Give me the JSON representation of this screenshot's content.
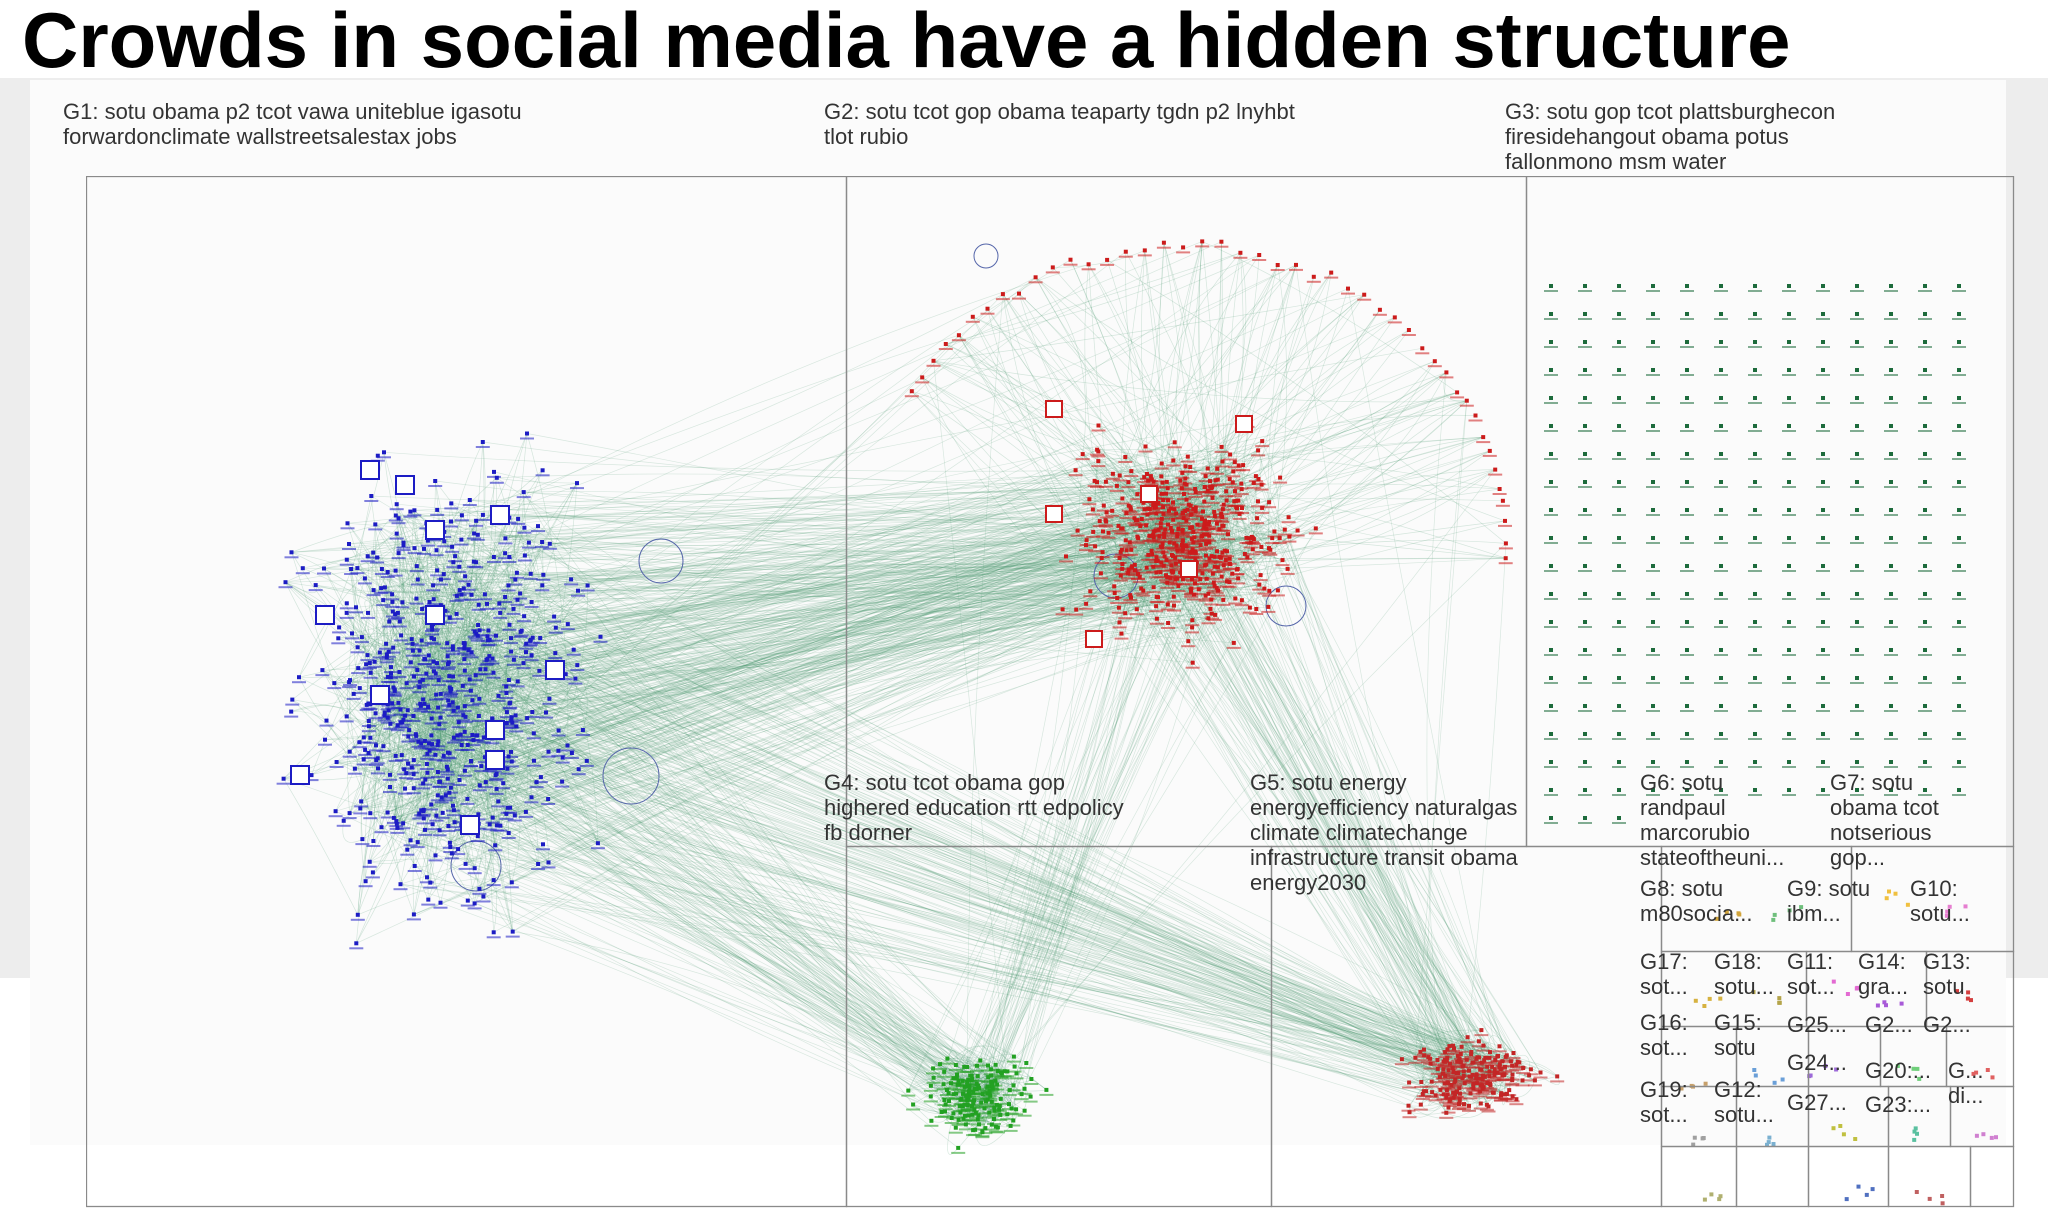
{
  "slide": {
    "title": "Crowds in social media have a hidden structure"
  },
  "colors": {
    "g1": "#1c1cc4",
    "g2": "#cc1b1b",
    "g3": "#1d6b3c",
    "g4": "#22a122",
    "g5": "#c32626",
    "edges": "#4f9a72",
    "panel_border": "#8a8a8a",
    "background": "#ededed"
  },
  "groups": [
    {
      "id": "G1",
      "lines": [
        "G1: sotu obama p2 tcot vawa uniteblue igasotu",
        "forwardonclimate wallstreetsalestax jobs"
      ]
    },
    {
      "id": "G2",
      "lines": [
        "G2: sotu tcot gop obama teaparty tgdn p2 lnyhbt",
        "tlot rubio"
      ]
    },
    {
      "id": "G3",
      "lines": [
        "G3: sotu gop tcot plattsburghecon",
        "firesidehangout obama potus",
        "fallonmono msm water"
      ]
    },
    {
      "id": "G4",
      "lines": [
        "G4: sotu tcot obama gop",
        "highered education rtt edpolicy",
        "fb dorner"
      ]
    },
    {
      "id": "G5",
      "lines": [
        "G5: sotu energy",
        "energyefficiency naturalgas",
        "climate climatechange",
        "infrastructure transit obama",
        "energy2030"
      ]
    },
    {
      "id": "G6",
      "lines": [
        "G6: sotu",
        "randpaul",
        "marcorubio",
        "stateoftheuni...",
        ""
      ]
    },
    {
      "id": "G7",
      "lines": [
        "G7: sotu",
        "obama tcot",
        "notserious",
        "gop..."
      ]
    },
    {
      "id": "G8",
      "lines": [
        "G8: sotu",
        "m80socia..."
      ]
    },
    {
      "id": "G9",
      "lines": [
        "G9: sotu",
        "ibm..."
      ]
    },
    {
      "id": "G10",
      "lines": [
        "G10:",
        "sotu..."
      ]
    },
    {
      "id": "G17",
      "lines": [
        "G17:",
        "sot..."
      ]
    },
    {
      "id": "G18",
      "lines": [
        "G18:",
        "sotu..."
      ]
    },
    {
      "id": "G11",
      "lines": [
        "G11:",
        "sot..."
      ]
    },
    {
      "id": "G14",
      "lines": [
        "G14:",
        "gra..."
      ]
    },
    {
      "id": "G13",
      "lines": [
        "G13:",
        "sotu"
      ]
    },
    {
      "id": "G16",
      "lines": [
        "G16:",
        "sot..."
      ]
    },
    {
      "id": "G15",
      "lines": [
        "G15:",
        "sotu"
      ]
    },
    {
      "id": "G25",
      "lines": [
        "G25..."
      ]
    },
    {
      "id": "G2x",
      "lines": [
        "G2..."
      ]
    },
    {
      "id": "G2y",
      "lines": [
        "G2..."
      ]
    },
    {
      "id": "G24",
      "lines": [
        "G24..."
      ]
    },
    {
      "id": "G20",
      "lines": [
        "G20:..."
      ]
    },
    {
      "id": "Gz",
      "lines": [
        "G...",
        "di..."
      ]
    },
    {
      "id": "G19",
      "lines": [
        "G19:",
        "sot..."
      ]
    },
    {
      "id": "G12",
      "lines": [
        "G12:",
        "sotu..."
      ]
    },
    {
      "id": "G27",
      "lines": [
        "G27..."
      ]
    },
    {
      "id": "G23",
      "lines": [
        "G23:..."
      ]
    }
  ]
}
